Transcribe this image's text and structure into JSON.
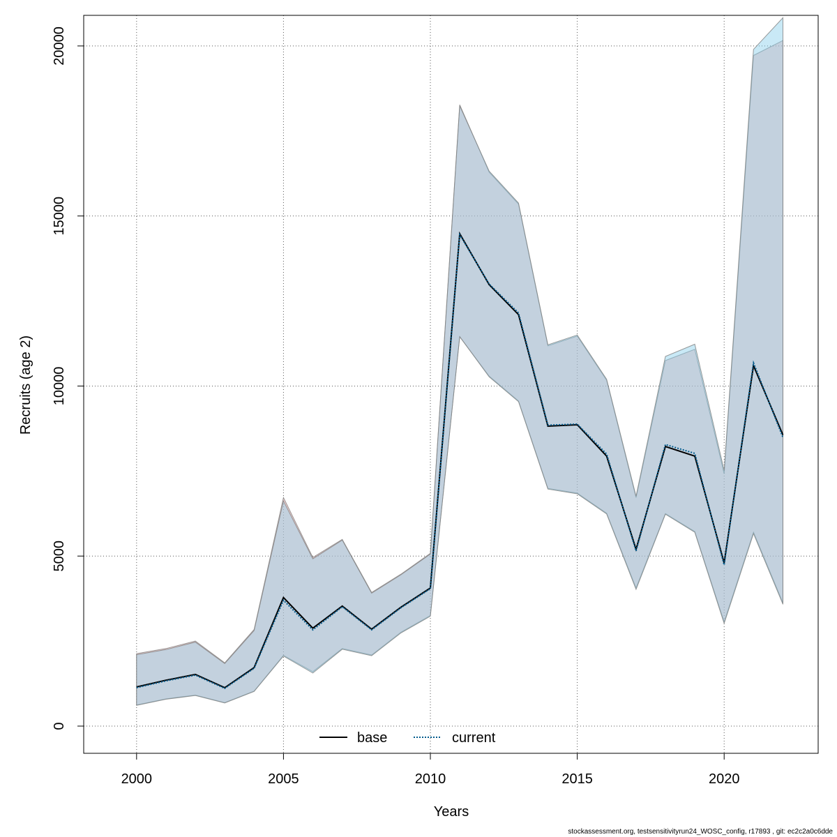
{
  "chart_data": {
    "type": "area",
    "xlabel": "Years",
    "ylabel": "Recruits (age 2)",
    "xlim": [
      1998.2,
      2023.2
    ],
    "ylim": [
      -800,
      20900
    ],
    "xticks": [
      2000,
      2005,
      2010,
      2015,
      2020
    ],
    "yticks": [
      0,
      5000,
      10000,
      15000,
      20000
    ],
    "grid": true,
    "legend_position": "bottom-center",
    "x": [
      2000,
      2001,
      2002,
      2003,
      2004,
      2005,
      2006,
      2007,
      2008,
      2009,
      2010,
      2011,
      2012,
      2013,
      2014,
      2015,
      2016,
      2017,
      2018,
      2019,
      2020,
      2021,
      2022
    ],
    "series": [
      {
        "name": "base",
        "line_style": "solid",
        "color": "#000000",
        "band_color": "#e8a0a0",
        "values": [
          1150,
          1350,
          1520,
          1130,
          1720,
          3780,
          2880,
          3530,
          2850,
          3500,
          4060,
          14480,
          12980,
          12100,
          8820,
          8860,
          7940,
          5200,
          8220,
          7940,
          4800,
          10600,
          8560
        ],
        "lower": [
          620,
          800,
          910,
          690,
          1030,
          2080,
          1600,
          2280,
          2090,
          2760,
          3250,
          11450,
          10290,
          9560,
          6990,
          6850,
          6260,
          4060,
          6250,
          5720,
          3060,
          5700,
          3620
        ],
        "upper": [
          2130,
          2280,
          2500,
          1860,
          2840,
          6720,
          4960,
          5490,
          3930,
          4470,
          5080,
          18270,
          16290,
          15350,
          11180,
          11470,
          10170,
          6720,
          10750,
          11080,
          7420,
          19720,
          20160
        ]
      },
      {
        "name": "current",
        "line_style": "dotted",
        "color": "#005a8c",
        "band_color": "#87ceeb",
        "values": [
          1130,
          1330,
          1500,
          1110,
          1700,
          3700,
          2830,
          3510,
          2830,
          3480,
          4040,
          14450,
          13000,
          12150,
          8850,
          8880,
          8000,
          5150,
          8280,
          8020,
          4740,
          10680,
          8490
        ],
        "lower": [
          610,
          790,
          900,
          680,
          1020,
          2060,
          1560,
          2260,
          2070,
          2740,
          3230,
          11450,
          10270,
          9540,
          6970,
          6830,
          6240,
          4020,
          6230,
          5700,
          3020,
          5660,
          3580
        ],
        "upper": [
          2100,
          2250,
          2470,
          1840,
          2810,
          6620,
          4920,
          5470,
          3910,
          4450,
          5060,
          18240,
          16320,
          15380,
          11210,
          11500,
          10200,
          6760,
          10870,
          11230,
          7520,
          19900,
          20830
        ]
      }
    ]
  },
  "footer_note": "stockassessment.org, testsensitivityrun24_WOSC_config, r17893 , git: ec2c2a0c6dde"
}
